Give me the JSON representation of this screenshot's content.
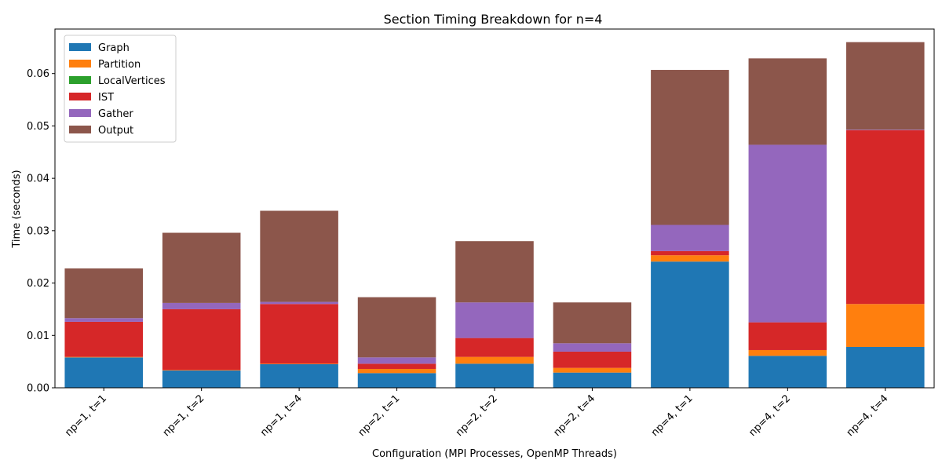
{
  "chart_data": {
    "type": "bar",
    "stacked": true,
    "title": "Section Timing Breakdown for n=4",
    "xlabel": "Configuration (MPI Processes, OpenMP Threads)",
    "ylabel": "Time (seconds)",
    "ylim": [
      0,
      0.0685
    ],
    "yticks": [
      "0.00",
      "0.01",
      "0.02",
      "0.03",
      "0.04",
      "0.05",
      "0.06"
    ],
    "ytick_values": [
      0,
      0.01,
      0.02,
      0.03,
      0.04,
      0.05,
      0.06
    ],
    "grid": false,
    "legend_position": "top-left",
    "categories": [
      "np=1, t=1",
      "np=1, t=2",
      "np=1, t=4",
      "np=2, t=1",
      "np=2, t=2",
      "np=2, t=4",
      "np=4, t=1",
      "np=4, t=2",
      "np=4, t=4"
    ],
    "series": [
      {
        "name": "Graph",
        "color": "#1f77b4",
        "values": [
          0.0058,
          0.0033,
          0.0045,
          0.0028,
          0.0046,
          0.0029,
          0.0241,
          0.0061,
          0.0078
        ]
      },
      {
        "name": "Partition",
        "color": "#ff7f0e",
        "values": [
          0.0001,
          0.0001,
          0.0001,
          0.0008,
          0.0013,
          0.0009,
          0.0012,
          0.0011,
          0.0082
        ]
      },
      {
        "name": "LocalVertices",
        "color": "#2ca02c",
        "values": [
          0.0,
          0.0,
          0.0,
          0.0,
          0.0,
          0.0,
          0.0,
          0.0,
          0.0
        ]
      },
      {
        "name": "IST",
        "color": "#d62728",
        "values": [
          0.0067,
          0.0116,
          0.0114,
          0.001,
          0.0036,
          0.0031,
          0.0008,
          0.0053,
          0.0332
        ]
      },
      {
        "name": "Gather",
        "color": "#9467bd",
        "values": [
          0.0007,
          0.0012,
          0.0004,
          0.0012,
          0.0068,
          0.0016,
          0.005,
          0.0339,
          0.0001
        ]
      },
      {
        "name": "Output",
        "color": "#8c564b",
        "values": [
          0.0095,
          0.0134,
          0.0174,
          0.0115,
          0.0117,
          0.0078,
          0.0296,
          0.0165,
          0.0167
        ]
      }
    ]
  }
}
